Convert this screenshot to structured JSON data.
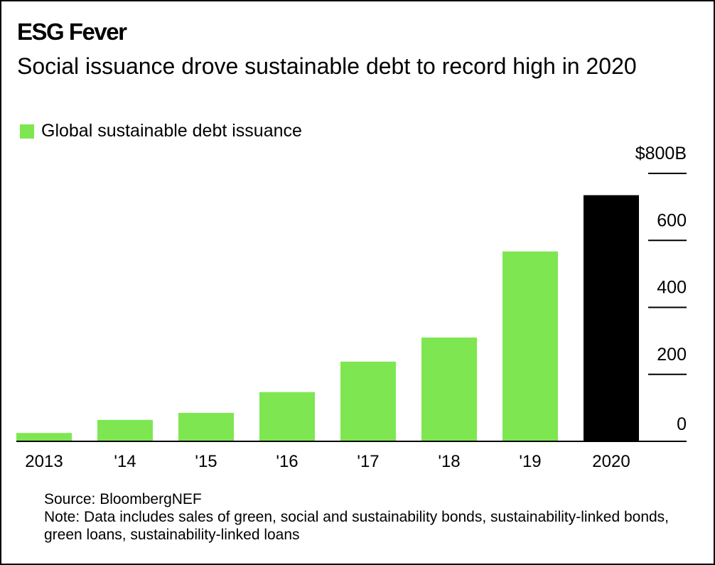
{
  "header": {
    "title": "ESG Fever",
    "subtitle": "Social issuance drove sustainable debt to record high in 2020"
  },
  "legend": [
    {
      "label": "Global sustainable debt issuance",
      "color": "#7ee651"
    }
  ],
  "footer": {
    "source": "Source: BloombergNEF",
    "note": "Note: Data includes sales of green, social and sustainability bonds, sustainability-linked bonds, green loans, sustainability-linked loans"
  },
  "chart_data": {
    "type": "bar",
    "title": "Social issuance drove sustainable debt to record high in 2020",
    "categories": [
      "2013",
      "'14",
      "'15",
      "'16",
      "'17",
      "'18",
      "'19",
      "2020"
    ],
    "series": [
      {
        "name": "Global sustainable debt issuance",
        "values": [
          25,
          64,
          85,
          147,
          238,
          310,
          567,
          735
        ]
      }
    ],
    "colors": [
      "#7ee651",
      "#7ee651",
      "#7ee651",
      "#7ee651",
      "#7ee651",
      "#7ee651",
      "#7ee651",
      "#000000"
    ],
    "ylim": [
      0,
      800
    ],
    "yticks": [
      0,
      200,
      400,
      600,
      800
    ],
    "ytick_labels": [
      "0",
      "200",
      "400",
      "600",
      "$800B"
    ],
    "xlabel": "",
    "ylabel": "",
    "yaxis_position": "right",
    "legend_position": "top-left"
  }
}
